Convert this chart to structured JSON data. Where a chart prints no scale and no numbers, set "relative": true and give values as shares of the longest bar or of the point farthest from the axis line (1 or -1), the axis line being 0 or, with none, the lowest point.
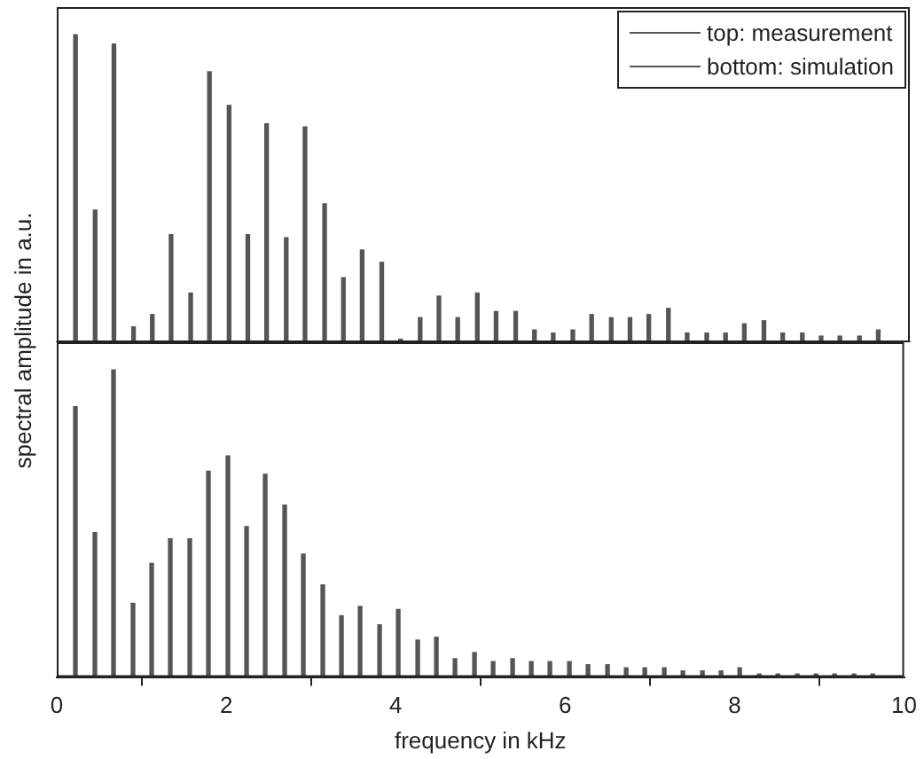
{
  "chart_data": [
    {
      "type": "bar",
      "relative": true,
      "xlim": [
        0,
        10
      ],
      "xticks": [
        0,
        2,
        4,
        6,
        8,
        10
      ],
      "tick_labels": false,
      "legend": "top right",
      "grid": false,
      "x": [
        0.22,
        0.45,
        0.67,
        0.9,
        1.12,
        1.34,
        1.57,
        1.79,
        2.02,
        2.24,
        2.46,
        2.69,
        2.91,
        3.14,
        3.36,
        3.58,
        3.81,
        4.03,
        4.26,
        4.48,
        4.7,
        4.93,
        5.15,
        5.38,
        5.6,
        5.82,
        6.05,
        6.27,
        6.5,
        6.72,
        6.94,
        7.17,
        7.39,
        7.62,
        7.84,
        8.06,
        8.29,
        8.51,
        8.74,
        8.96,
        9.18,
        9.41,
        9.63
      ],
      "series": [
        {
          "name": "top: measurement",
          "color": "#555555",
          "values": [
            1.0,
            0.43,
            0.97,
            0.05,
            0.09,
            0.35,
            0.16,
            0.88,
            0.77,
            0.35,
            0.71,
            0.34,
            0.7,
            0.45,
            0.21,
            0.3,
            0.26,
            0.01,
            0.08,
            0.15,
            0.08,
            0.16,
            0.1,
            0.1,
            0.04,
            0.03,
            0.04,
            0.09,
            0.08,
            0.08,
            0.09,
            0.11,
            0.03,
            0.03,
            0.03,
            0.06,
            0.07,
            0.03,
            0.03,
            0.02,
            0.02,
            0.02,
            0.04
          ]
        }
      ]
    },
    {
      "type": "bar",
      "relative": true,
      "xlabel": "frequency in kHz",
      "ylabel": "spectral amplitude in a.u.",
      "xlim": [
        0,
        10
      ],
      "xticks": [
        0,
        2,
        4,
        6,
        8,
        10
      ],
      "tick_labels": "x",
      "legend": "top right",
      "grid": false,
      "x": [
        0.22,
        0.45,
        0.67,
        0.9,
        1.12,
        1.34,
        1.57,
        1.79,
        2.02,
        2.24,
        2.46,
        2.69,
        2.91,
        3.14,
        3.36,
        3.58,
        3.81,
        4.03,
        4.26,
        4.48,
        4.7,
        4.93,
        5.15,
        5.38,
        5.6,
        5.82,
        6.05,
        6.27,
        6.5,
        6.72,
        6.94,
        7.17,
        7.39,
        7.62,
        7.84,
        8.06,
        8.29,
        8.51,
        8.74,
        8.96,
        9.18,
        9.41,
        9.63
      ],
      "series": [
        {
          "name": "bottom: simulation",
          "color": "#555555",
          "values": [
            0.88,
            0.47,
            1.0,
            0.24,
            0.37,
            0.45,
            0.45,
            0.67,
            0.72,
            0.49,
            0.66,
            0.56,
            0.4,
            0.3,
            0.2,
            0.23,
            0.17,
            0.22,
            0.12,
            0.13,
            0.06,
            0.08,
            0.05,
            0.06,
            0.05,
            0.05,
            0.05,
            0.04,
            0.04,
            0.03,
            0.03,
            0.03,
            0.02,
            0.02,
            0.02,
            0.03,
            0.01,
            0.01,
            0.01,
            0.01,
            0.01,
            0.01,
            0.01
          ]
        }
      ]
    }
  ]
}
